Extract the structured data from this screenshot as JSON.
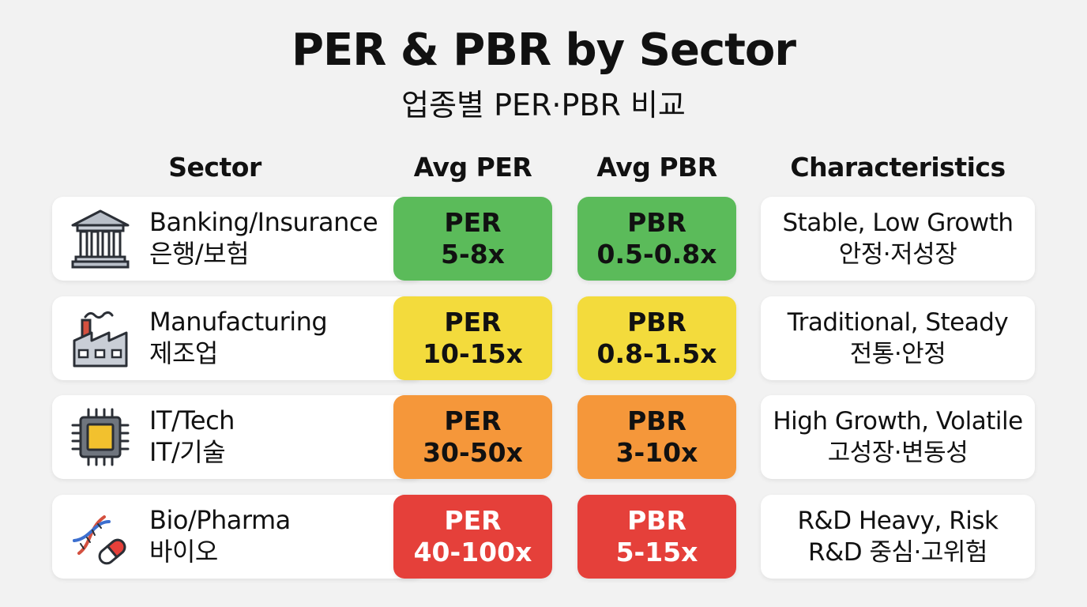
{
  "title": "PER & PBR by Sector",
  "subtitle": "업종별 PER·PBR 비교",
  "headers": {
    "sector": "Sector",
    "per": "Avg PER",
    "pbr": "Avg PBR",
    "characteristics": "Characteristics"
  },
  "rows": [
    {
      "icon": "bank-icon",
      "sector_en": "Banking/Insurance",
      "sector_ko": "은행/보험",
      "per_label": "PER",
      "per_range": "5-8x",
      "pbr_label": "PBR",
      "pbr_range": "0.5-0.8x",
      "char_en": "Stable, Low Growth",
      "char_ko": "안정·저성장",
      "color": "#5bbb5a",
      "text_color": "#111111"
    },
    {
      "icon": "factory-icon",
      "sector_en": "Manufacturing",
      "sector_ko": "제조업",
      "per_label": "PER",
      "per_range": "10-15x",
      "pbr_label": "PBR",
      "pbr_range": "0.8-1.5x",
      "char_en": "Traditional, Steady",
      "char_ko": "전통·안정",
      "color": "#f3db3c",
      "text_color": "#111111"
    },
    {
      "icon": "chip-icon",
      "sector_en": "IT/Tech",
      "sector_ko": "IT/기술",
      "per_label": "PER",
      "per_range": "30-50x",
      "pbr_label": "PBR",
      "pbr_range": "3-10x",
      "char_en": "High Growth, Volatile",
      "char_ko": "고성장·변동성",
      "color": "#f5973a",
      "text_color": "#111111"
    },
    {
      "icon": "dna-pill-icon",
      "sector_en": "Bio/Pharma",
      "sector_ko": "바이오",
      "per_label": "PER",
      "per_range": "40-100x",
      "pbr_label": "PBR",
      "pbr_range": "5-15x",
      "char_en": "R&D Heavy, Risk",
      "char_ko": "R&D 중심·고위험",
      "color": "#e5403a",
      "text_color": "#ffffff"
    }
  ]
}
